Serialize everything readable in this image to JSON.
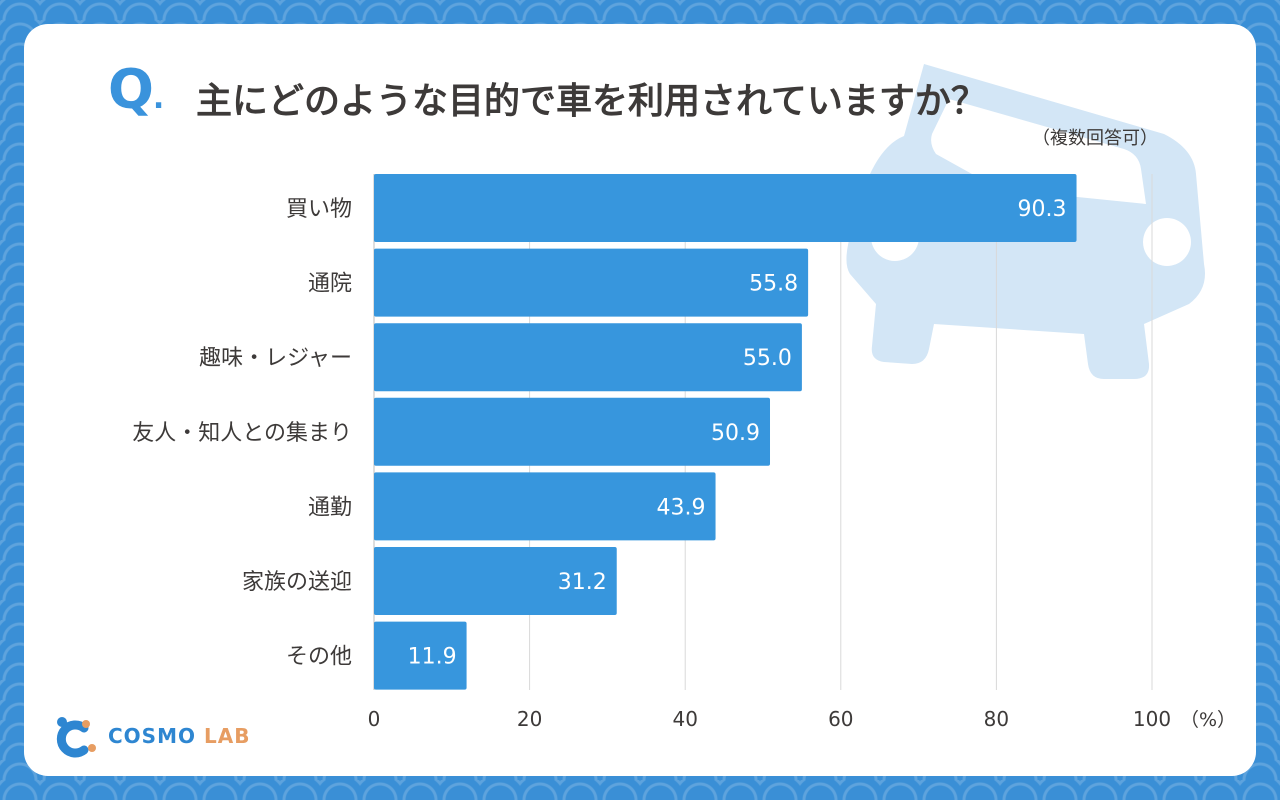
{
  "header": {
    "q_label": "Q",
    "q_dot": ".",
    "title": "主にどのような目的で車を利用されていますか？",
    "note": "（複数回答可）"
  },
  "colors": {
    "bar": "#3796dd",
    "bar_label": "#ffffff",
    "text": "#3d3a39",
    "grid": "#d9d9d9",
    "background": "#3a8fd6",
    "car": "#cfe3f3"
  },
  "chart_data": {
    "type": "bar",
    "orientation": "horizontal",
    "categories": [
      "買い物",
      "通院",
      "趣味・レジャー",
      "友人・知人との集まり",
      "通勤",
      "家族の送迎",
      "その他"
    ],
    "values": [
      90.3,
      55.8,
      55.0,
      50.9,
      43.9,
      31.2,
      11.9
    ],
    "value_labels": [
      "90.3",
      "55.8",
      "55.0",
      "50.9",
      "43.9",
      "31.2",
      "11.9"
    ],
    "xlim": [
      0,
      100
    ],
    "xticks": [
      "0",
      "20",
      "40",
      "60",
      "80",
      "100"
    ],
    "xunit": "（%）",
    "grid": true
  },
  "logo": {
    "part1": "COSMO",
    "part2": "LAB"
  }
}
